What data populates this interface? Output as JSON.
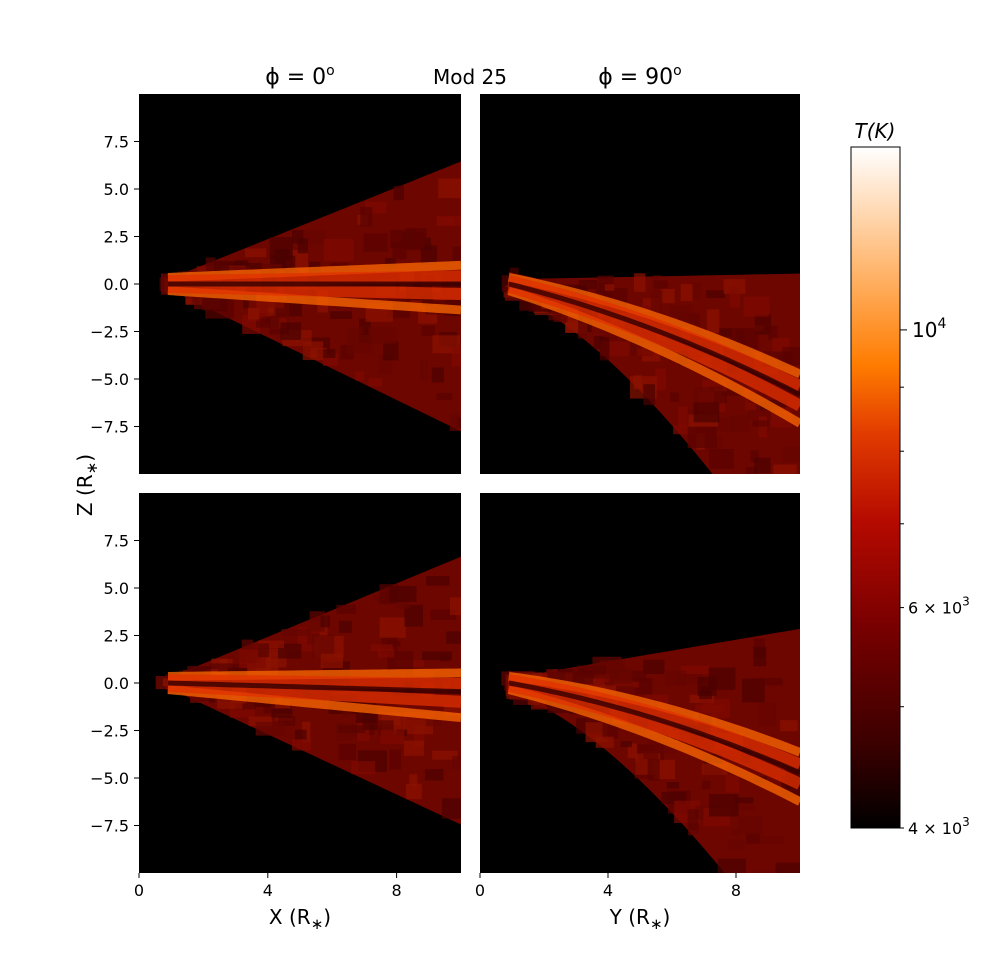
{
  "chart_data": {
    "type": "heatmap",
    "figure_title": "Mod 25",
    "column_titles": {
      "left": "ϕ = 0",
      "left_sup": "o",
      "right": "ϕ = 90",
      "right_sup": "o"
    },
    "ylabel": "Z (R",
    "ylabel_sub": "∗",
    "ylabel_end": ")",
    "xlabel_left": "X (R",
    "xlabel_right": "Y (R",
    "xlabel_sub": "∗",
    "xlabel_end": ")",
    "xlim": [
      0,
      10
    ],
    "ylim": [
      -10,
      10
    ],
    "x_ticks": [
      0,
      4,
      8
    ],
    "x_tick_labels": [
      "0",
      "4",
      "8"
    ],
    "y_ticks": [
      7.5,
      5.0,
      2.5,
      0.0,
      -2.5,
      -5.0,
      -7.5
    ],
    "y_tick_labels": [
      "7.5",
      "5.0",
      "2.5",
      "0.0",
      "−2.5",
      "−5.0",
      "−7.5"
    ],
    "colorbar": {
      "label": "T(K)",
      "scale": "log",
      "range": [
        4000,
        14000
      ],
      "major_ticks": [
        {
          "value": 10000,
          "label": "10",
          "sup": "4"
        }
      ],
      "minor_ticks": [
        {
          "value": 6000,
          "label": "6 × 10",
          "sup": "3"
        },
        {
          "value": 4000,
          "label": "4 × 10",
          "sup": "3"
        }
      ],
      "unlabeled_ticks": [
        5000,
        7000,
        8000,
        9000
      ],
      "colormap": [
        "#000000",
        "#3a0000",
        "#7a0000",
        "#b50a00",
        "#e23c00",
        "#ff7c00",
        "#ffb66e",
        "#ffffff"
      ]
    },
    "panels": [
      {
        "id": "top-left",
        "column": "phi-0",
        "tilt": 0.0,
        "upper_edge": 6.2,
        "lower_edge": -7.5,
        "inner_r": 0.9
      },
      {
        "id": "top-right",
        "column": "phi-90",
        "tilt": -0.42,
        "upper_edge": 0.3,
        "lower_edge": -10,
        "inner_r": 0.9
      },
      {
        "id": "bottom-left",
        "column": "phi-0",
        "tilt": -0.05,
        "upper_edge": 6.4,
        "lower_edge": -7.2,
        "inner_r": 0.9
      },
      {
        "id": "bottom-right",
        "column": "phi-90",
        "tilt": -0.3,
        "upper_edge": 2.6,
        "lower_edge": -10,
        "inner_r": 0.9
      }
    ],
    "background_color": "#000000"
  }
}
